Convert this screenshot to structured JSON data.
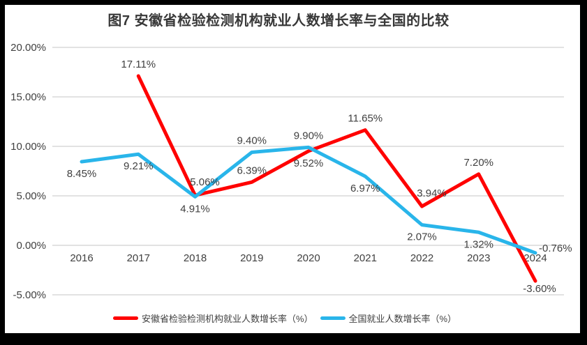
{
  "title": "图7 安徽省检验检测机构就业人数增长率与全国的比较",
  "colors": {
    "frame_border": "#000000",
    "background": "#ffffff",
    "grid": "#d9d9d9",
    "tick_text": "#404040",
    "data_label_text": "#404040",
    "series_anhui": "#ff0000",
    "series_national": "#29b5ea"
  },
  "chart_data": {
    "type": "line",
    "title": "图7 安徽省检验检测机构就业人数增长率与全国的比较",
    "categories": [
      "2016",
      "2017",
      "2018",
      "2019",
      "2020",
      "2021",
      "2022",
      "2023",
      "2024"
    ],
    "series": [
      {
        "name": "安徽省检验检测机构就业人数增长率（%）",
        "color": "#ff0000",
        "values": [
          null,
          17.11,
          5.06,
          6.39,
          9.52,
          11.65,
          3.94,
          7.2,
          -3.6
        ],
        "labels": [
          "",
          "17.11%",
          "5.06%",
          "6.39%",
          "9.52%",
          "11.65%",
          "3.94%",
          "7.20%",
          "-3.60%"
        ],
        "label_placements": [
          null,
          "above",
          "above-right",
          "above",
          "below",
          "above",
          "above-right",
          "above",
          "below-right"
        ]
      },
      {
        "name": "全国就业人数增长率（%）",
        "color": "#29b5ea",
        "values": [
          8.45,
          9.21,
          4.91,
          9.4,
          9.9,
          6.97,
          2.07,
          1.32,
          -0.76
        ],
        "labels": [
          "8.45%",
          "9.21%",
          "4.91%",
          "9.40%",
          "9.90%",
          "6.97%",
          "2.07%",
          "1.32%",
          "-0.76%"
        ],
        "label_placements": [
          "below",
          "below",
          "below",
          "above",
          "above",
          "below",
          "below",
          "below",
          "right"
        ]
      }
    ],
    "xlabel": "",
    "ylabel": "",
    "ylim": [
      -5,
      20
    ],
    "yticks": [
      {
        "value": 20,
        "label": "20.00%"
      },
      {
        "value": 15,
        "label": "15.00%"
      },
      {
        "value": 10,
        "label": "10.00%"
      },
      {
        "value": 5,
        "label": "5.00%"
      },
      {
        "value": 0,
        "label": "0.00%"
      },
      {
        "value": -5,
        "label": "-5.00%"
      }
    ],
    "grid": true,
    "legend_position": "bottom"
  },
  "legend": {
    "items": [
      {
        "label": "安徽省检验检测机构就业人数增长率（%）",
        "color": "#ff0000"
      },
      {
        "label": "全国就业人数增长率（%）",
        "color": "#29b5ea"
      }
    ]
  }
}
